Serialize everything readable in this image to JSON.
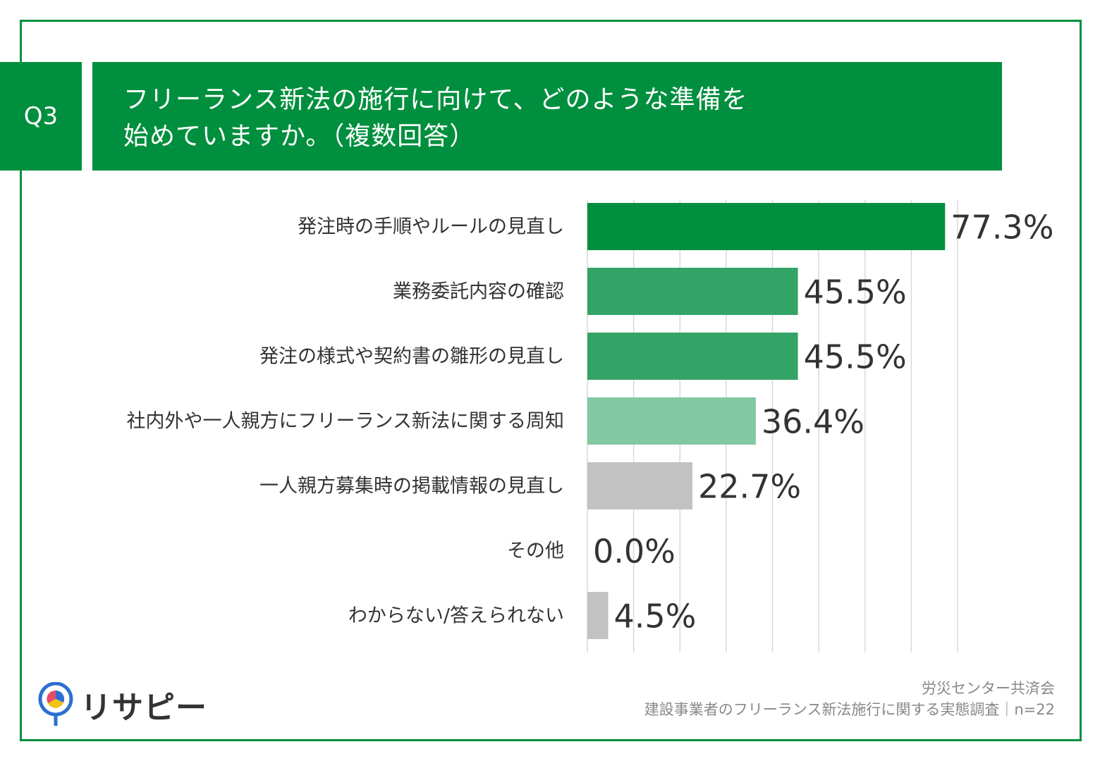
{
  "header": {
    "badge": "Q3",
    "title_line1": "フリーランス新法の施行に向けて、どのような準備を",
    "title_line2": "始めていますか。（複数回答）"
  },
  "chart_data": {
    "type": "bar",
    "orientation": "horizontal",
    "title": "フリーランス新法の施行に向けて、どのような準備を始めていますか。（複数回答）",
    "categories": [
      "発注時の手順やルールの見直し",
      "業務委託内容の確認",
      "発注の様式や契約書の雛形の見直し",
      "社内外や一人親方にフリーランス新法に関する周知",
      "一人親方募集時の掲載情報の見直し",
      "その他",
      "わからない/答えられない"
    ],
    "values": [
      77.3,
      45.5,
      45.5,
      36.4,
      22.7,
      0.0,
      4.5
    ],
    "labels": [
      "77.3%",
      "45.5%",
      "45.5%",
      "36.4%",
      "22.7%",
      "0.0%",
      "4.5%"
    ],
    "colors": [
      "#008f3e",
      "#33a466",
      "#33a466",
      "#82c8a0",
      "#c2c2c2",
      "#c2c2c2",
      "#c2c2c2"
    ],
    "xlim": [
      0,
      80
    ],
    "grid": true,
    "gridline_color": "#d9d9d9",
    "xlabel": "",
    "ylabel": ""
  },
  "footer": {
    "source_line1": "労災センター共済会",
    "source_line2": "建設事業者のフリーランス新法施行に関する実態調査｜n=22",
    "logo_text": "リサピー",
    "logo_colors": [
      "#2c6fd1",
      "#f2c21b",
      "#e84c6a"
    ]
  }
}
